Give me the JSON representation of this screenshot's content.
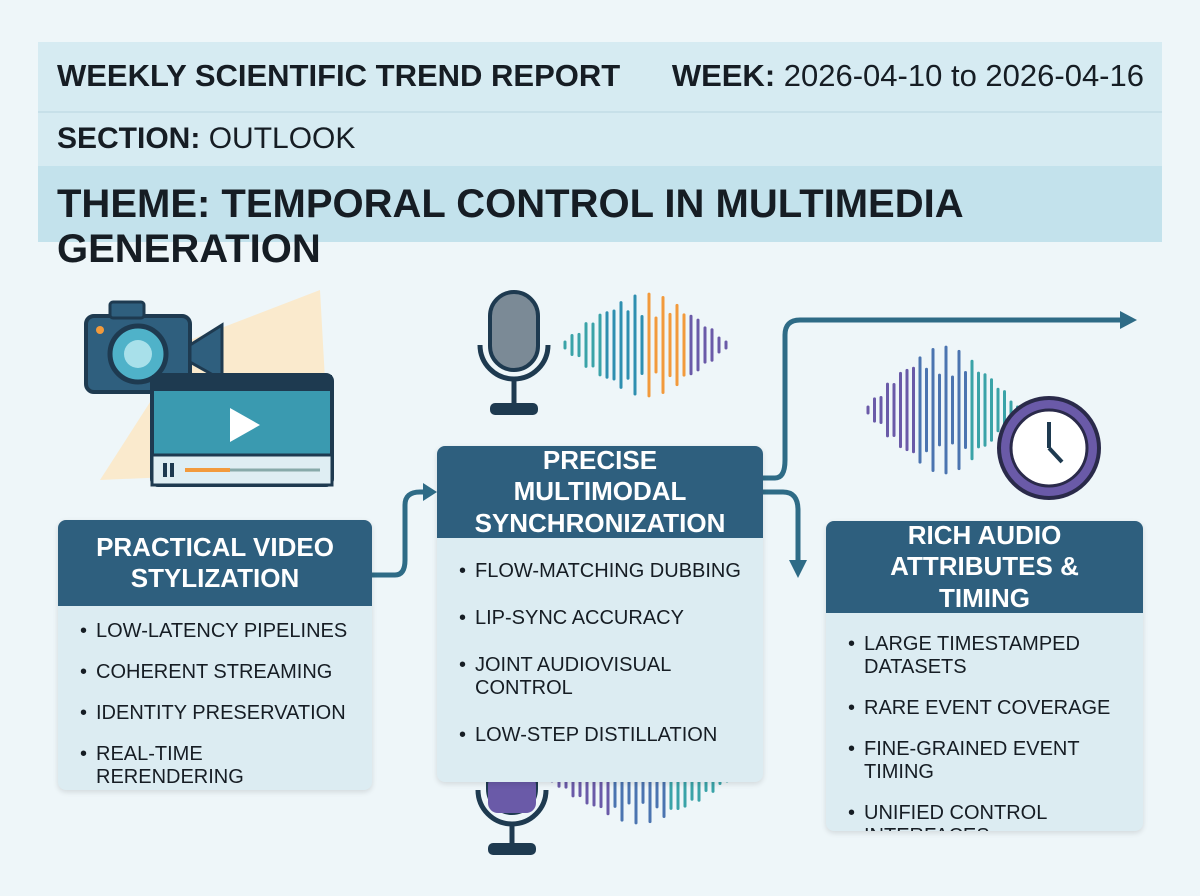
{
  "header": {
    "title": "WEEKLY SCIENTIFIC TREND REPORT",
    "week_label": "WEEK:",
    "week_value": "2026-04-10 to 2026-04-16",
    "section_label": "SECTION:",
    "section_value": "OUTLOOK",
    "theme": "THEME: TEMPORAL CONTROL IN MULTIMEDIA GENERATION"
  },
  "cards": [
    {
      "title": "PRACTICAL VIDEO STYLIZATION",
      "items": [
        "LOW-LATENCY PIPELINES",
        "COHERENT STREAMING",
        "IDENTITY PRESERVATION",
        "REAL-TIME RERENDERING"
      ]
    },
    {
      "title": "PRECISE MULTIMODAL SYNCHRONIZATION",
      "items": [
        "FLOW-MATCHING DUBBING",
        "LIP-SYNC ACCURACY",
        "JOINT AUDIOVISUAL CONTROL",
        "LOW-STEP DISTILLATION"
      ]
    },
    {
      "title": "RICH AUDIO ATTRIBUTES & TIMING",
      "items": [
        "LARGE TIMESTAMPED DATASETS",
        "RARE EVENT COVERAGE",
        "FINE-GRAINED EVENT TIMING",
        "UNIFIED CONTROL INTERFACES"
      ]
    }
  ]
}
